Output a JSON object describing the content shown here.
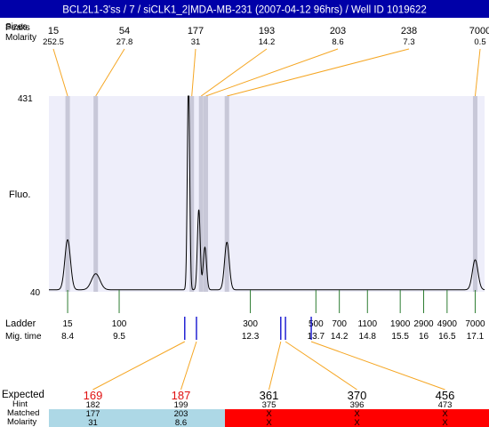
{
  "header": {
    "title": "BCL2L1-3'ss / 7 / siCLK1_2|MDA-MB-231 (2007-04-12 96hrs) / Well ID 1019622",
    "bg_color": "#0000a8",
    "text_color": "#ffffff"
  },
  "row_labels": {
    "sizes_overlap": "Sizes",
    "peaks": "Peaks",
    "molarity": "Molarity",
    "ladder": "Ladder",
    "mig_time": "Mig. time",
    "expected": "Expected",
    "hint": "Hint",
    "matched": "Matched",
    "molarity_bottom": "Molarity"
  },
  "chart_data": {
    "type": "line",
    "ylabel": "Fluo.",
    "ylim": [
      40,
      431
    ],
    "y_ticks": [
      "431",
      "40"
    ],
    "plot_bg": "#eeeefa",
    "trace_color": "#000000",
    "peak_band_color": "#c8c8d8",
    "top_peaks": [
      {
        "size": "15",
        "molarity": "252.5",
        "mig": 8.4
      },
      {
        "size": "54",
        "molarity": "27.8",
        "mig": 9.0
      },
      {
        "size": "177",
        "molarity": "31",
        "mig": 11.05
      },
      {
        "size": "193",
        "molarity": "14.2",
        "mig": 11.25
      },
      {
        "size": "203",
        "molarity": "8.6",
        "mig": 11.35
      },
      {
        "size": "238",
        "molarity": "7.3",
        "mig": 11.8
      },
      {
        "size": "7000",
        "molarity": "0.5",
        "mig": 17.1
      }
    ],
    "trace_peaks": [
      {
        "mig": 8.4,
        "height": 100,
        "width": 0.06
      },
      {
        "mig": 9.0,
        "height": 32,
        "width": 0.09
      },
      {
        "mig": 10.98,
        "height": 420,
        "width": 0.025
      },
      {
        "mig": 11.2,
        "height": 160,
        "width": 0.03
      },
      {
        "mig": 11.33,
        "height": 85,
        "width": 0.035
      },
      {
        "mig": 11.8,
        "height": 95,
        "width": 0.05
      },
      {
        "mig": 17.1,
        "height": 60,
        "width": 0.06
      }
    ],
    "baseline": 44,
    "ladder": [
      {
        "size": "15",
        "mig": "8.4",
        "pos": 8.4
      },
      {
        "size": "100",
        "mig": "9.5",
        "pos": 9.5
      },
      {
        "size": "300",
        "mig": "12.3",
        "pos": 12.3
      },
      {
        "size": "500",
        "mig": "13.7",
        "pos": 13.7
      },
      {
        "size": "700",
        "mig": "14.2",
        "pos": 14.2
      },
      {
        "size": "1100",
        "mig": "14.8",
        "pos": 14.8
      },
      {
        "size": "1900",
        "mig": "15.5",
        "pos": 15.5
      },
      {
        "size": "2900",
        "mig": "16",
        "pos": 16.0
      },
      {
        "size": "4900",
        "mig": "16.5",
        "pos": 16.5
      },
      {
        "size": "7000",
        "mig": "17.1",
        "pos": 17.1
      }
    ],
    "blue_markers": [
      10.9,
      11.15,
      12.95,
      13.05,
      13.6
    ],
    "expected": [
      {
        "expected": "169",
        "hint": "182",
        "matched": "177",
        "molarity": "31",
        "status": "matched",
        "marker": 10.9
      },
      {
        "expected": "187",
        "hint": "199",
        "matched": "203",
        "molarity": "8.6",
        "status": "matched",
        "marker": 11.15
      },
      {
        "expected": "361",
        "hint": "375",
        "matched": "X",
        "molarity": "X",
        "status": "missing",
        "marker": 12.95
      },
      {
        "expected": "370",
        "hint": "396",
        "matched": "X",
        "molarity": "X",
        "status": "missing",
        "marker": 13.05
      },
      {
        "expected": "456",
        "hint": "473",
        "matched": "X",
        "molarity": "X",
        "status": "missing",
        "marker": 13.6
      }
    ],
    "colors": {
      "orange": "#f5a623",
      "green": "#2e7d32",
      "blue_marker": "#0000cc",
      "expected_red": "#e01010",
      "matched_bg": "#add8e6",
      "missing_bg": "#ff0000"
    }
  }
}
